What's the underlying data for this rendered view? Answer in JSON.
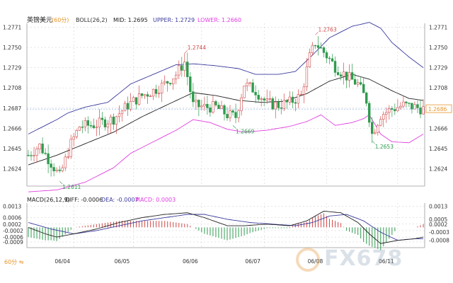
{
  "chart_data": {
    "type": "candlestick",
    "symbol": "英镑美元",
    "period": "60分",
    "boll_header": {
      "label": "BOLL(26,2)",
      "mid": "MID: 1.2695",
      "upper": "UPPER: 1.2729",
      "lower": "LOWER: 1.2660"
    },
    "price_axis": {
      "ylim": [
        1.2606,
        1.2775
      ],
      "ticks": [
        "1.2771",
        "1.2750",
        "1.2729",
        "1.2708",
        "1.2687",
        "1.2666",
        "1.2645",
        "1.2624"
      ]
    },
    "current_price": "1.2686",
    "current_price_value": 1.2686,
    "annotations": [
      {
        "label": "1.2763",
        "value": 1.2763,
        "index": 101
      },
      {
        "label": "1.2744",
        "value": 1.2744,
        "index": 55
      },
      {
        "label": "1.2669",
        "value": 1.2669,
        "index": 72
      },
      {
        "label": "1.2653",
        "value": 1.2653,
        "index": 121
      },
      {
        "label": "1.2611",
        "value": 1.2611,
        "index": 11
      }
    ],
    "x_axis": {
      "labels": [
        "06/04",
        "06/05",
        "06/06",
        "06/07",
        "06/08",
        "06/11"
      ],
      "label_index": [
        12,
        33,
        57,
        79,
        101,
        126
      ],
      "day_separators": [
        16,
        37,
        61,
        83,
        105,
        130
      ],
      "count": 140
    },
    "price_anchors": [
      [
        0,
        1.2638
      ],
      [
        4,
        1.2648
      ],
      [
        8,
        1.263
      ],
      [
        11,
        1.2616
      ],
      [
        15,
        1.265
      ],
      [
        18,
        1.2668
      ],
      [
        24,
        1.267
      ],
      [
        30,
        1.2676
      ],
      [
        35,
        1.269
      ],
      [
        40,
        1.27
      ],
      [
        44,
        1.2705
      ],
      [
        48,
        1.2712
      ],
      [
        52,
        1.2722
      ],
      [
        55,
        1.2735
      ],
      [
        58,
        1.269
      ],
      [
        62,
        1.2688
      ],
      [
        66,
        1.2688
      ],
      [
        70,
        1.268
      ],
      [
        73,
        1.2678
      ],
      [
        76,
        1.2712
      ],
      [
        80,
        1.2705
      ],
      [
        84,
        1.2692
      ],
      [
        88,
        1.269
      ],
      [
        92,
        1.2693
      ],
      [
        96,
        1.27
      ],
      [
        99,
        1.274
      ],
      [
        101,
        1.2755
      ],
      [
        104,
        1.2745
      ],
      [
        108,
        1.273
      ],
      [
        112,
        1.272
      ],
      [
        116,
        1.2712
      ],
      [
        119,
        1.2695
      ],
      [
        121,
        1.266
      ],
      [
        124,
        1.268
      ],
      [
        128,
        1.2686
      ],
      [
        132,
        1.269
      ],
      [
        136,
        1.2688
      ],
      [
        139,
        1.2686
      ]
    ],
    "boll_mid_anchors": [
      [
        0,
        1.2628
      ],
      [
        10,
        1.2638
      ],
      [
        20,
        1.265
      ],
      [
        30,
        1.2662
      ],
      [
        40,
        1.2678
      ],
      [
        50,
        1.2692
      ],
      [
        58,
        1.2703
      ],
      [
        66,
        1.27
      ],
      [
        74,
        1.2695
      ],
      [
        82,
        1.2693
      ],
      [
        90,
        1.2694
      ],
      [
        98,
        1.2702
      ],
      [
        106,
        1.2715
      ],
      [
        114,
        1.2722
      ],
      [
        120,
        1.2717
      ],
      [
        128,
        1.2705
      ],
      [
        134,
        1.2697
      ],
      [
        139,
        1.2695
      ]
    ],
    "boll_upper_anchors": [
      [
        0,
        1.266
      ],
      [
        10,
        1.2675
      ],
      [
        14,
        1.2682
      ],
      [
        20,
        1.2688
      ],
      [
        28,
        1.2693
      ],
      [
        36,
        1.2712
      ],
      [
        44,
        1.2722
      ],
      [
        52,
        1.2732
      ],
      [
        58,
        1.2733
      ],
      [
        66,
        1.2731
      ],
      [
        74,
        1.2728
      ],
      [
        80,
        1.2722
      ],
      [
        88,
        1.2722
      ],
      [
        94,
        1.2725
      ],
      [
        100,
        1.2742
      ],
      [
        106,
        1.276
      ],
      [
        114,
        1.2772
      ],
      [
        120,
        1.2776
      ],
      [
        124,
        1.277
      ],
      [
        128,
        1.2755
      ],
      [
        134,
        1.274
      ],
      [
        139,
        1.2729
      ]
    ],
    "boll_lower_anchors": [
      [
        0,
        1.26
      ],
      [
        10,
        1.2602
      ],
      [
        20,
        1.261
      ],
      [
        30,
        1.2625
      ],
      [
        36,
        1.264
      ],
      [
        44,
        1.2652
      ],
      [
        52,
        1.2664
      ],
      [
        58,
        1.2675
      ],
      [
        64,
        1.2672
      ],
      [
        70,
        1.2665
      ],
      [
        76,
        1.2662
      ],
      [
        84,
        1.2664
      ],
      [
        92,
        1.2668
      ],
      [
        98,
        1.2673
      ],
      [
        103,
        1.268
      ],
      [
        108,
        1.2669
      ],
      [
        114,
        1.2672
      ],
      [
        118,
        1.2676
      ],
      [
        120,
        1.268
      ],
      [
        124,
        1.266
      ],
      [
        128,
        1.2652
      ],
      [
        134,
        1.2651
      ],
      [
        139,
        1.266
      ]
    ],
    "macd_header": {
      "label": "MACD(26,12,9)",
      "diff": "DIFF: -0.0006",
      "dea": "DEA: -0.0007",
      "macd": "MACD: 0.0003"
    },
    "macd_axis": {
      "ylim": [
        -0.00125,
        0.0015
      ],
      "left_ticks": [
        "0.0013",
        "0.0006",
        "0.0002",
        "-0.0002",
        "-0.0006",
        "-0.0009"
      ],
      "right_ticks": [
        "0.0013",
        "0.0005",
        "0.0002",
        "-0.0003",
        "-0.0008"
      ]
    },
    "diff_anchors": [
      [
        0,
        0.0
      ],
      [
        6,
        -0.0004
      ],
      [
        10,
        -0.0006
      ],
      [
        16,
        -0.0004
      ],
      [
        24,
        -0.0001
      ],
      [
        32,
        0.0003
      ],
      [
        40,
        0.0006
      ],
      [
        48,
        0.0008
      ],
      [
        56,
        0.0009
      ],
      [
        62,
        0.0006
      ],
      [
        70,
        0.0001
      ],
      [
        76,
        0.0001
      ],
      [
        84,
        0.0002
      ],
      [
        92,
        0.0001
      ],
      [
        98,
        0.0004
      ],
      [
        104,
        0.001
      ],
      [
        110,
        0.0009
      ],
      [
        116,
        0.0003
      ],
      [
        120,
        -0.0004
      ],
      [
        124,
        -0.001
      ],
      [
        130,
        -0.0008
      ],
      [
        136,
        -0.0007
      ],
      [
        139,
        -0.0006
      ]
    ],
    "dea_anchors": [
      [
        0,
        0.0003
      ],
      [
        8,
        -0.0001
      ],
      [
        16,
        -0.0004
      ],
      [
        24,
        -0.0002
      ],
      [
        32,
        0.0001
      ],
      [
        40,
        0.0004
      ],
      [
        48,
        0.0006
      ],
      [
        56,
        0.0008
      ],
      [
        62,
        0.0008
      ],
      [
        70,
        0.0005
      ],
      [
        78,
        0.0003
      ],
      [
        86,
        0.0002
      ],
      [
        94,
        0.0001
      ],
      [
        100,
        0.0003
      ],
      [
        106,
        0.0007
      ],
      [
        112,
        0.0008
      ],
      [
        118,
        0.0004
      ],
      [
        124,
        -0.0003
      ],
      [
        130,
        -0.0008
      ],
      [
        136,
        -0.0007
      ],
      [
        139,
        -0.0007
      ]
    ],
    "colors": {
      "up": "#d24a4a",
      "down": "#2e9b4d",
      "boll_mid": "#222222",
      "boll_upper": "#3b3b9e",
      "boll_lower": "#e03fe0",
      "diff": "#222222",
      "dea": "#3b3b9e",
      "grid": "#c9c9c9",
      "current": "#e8952a"
    }
  }
}
